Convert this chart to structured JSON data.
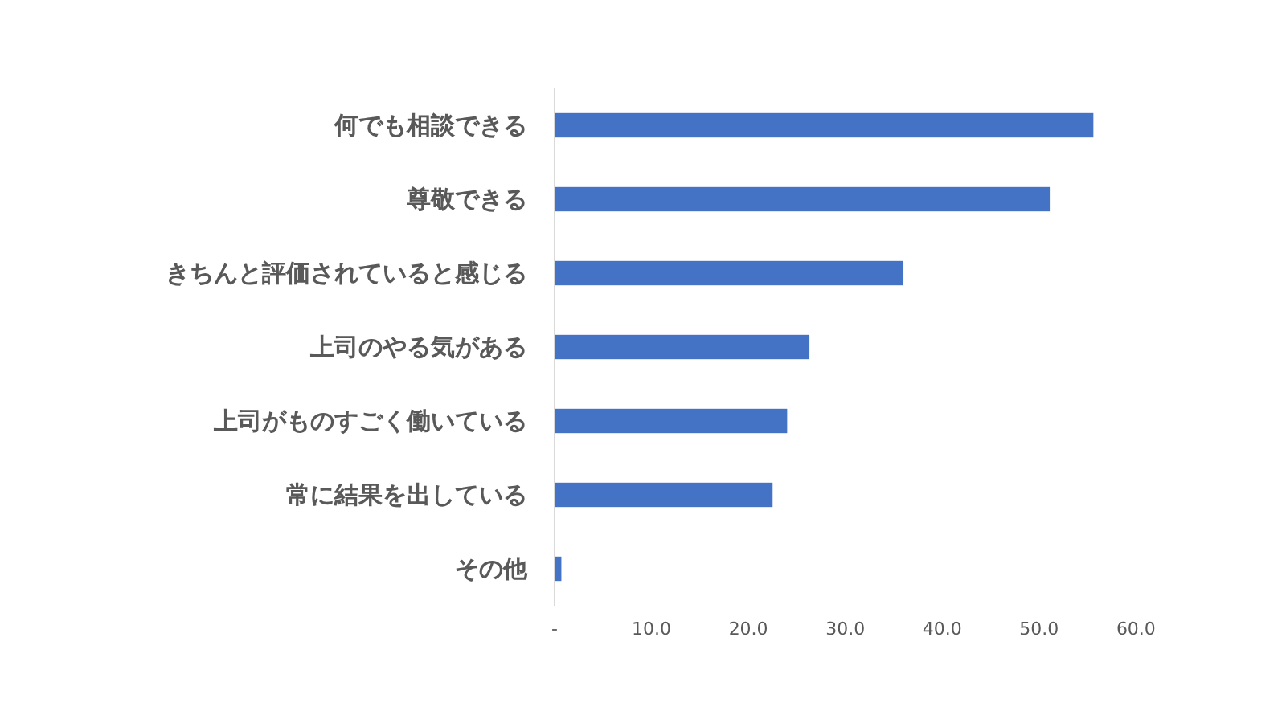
{
  "chart_data": {
    "type": "bar",
    "orientation": "horizontal",
    "categories": [
      "何でも相談できる",
      "尊敬できる",
      "きちんと評価されていると感じる",
      "上司のやる気がある",
      "上司がものすごく働いている",
      "常に結果を出している",
      "その他"
    ],
    "values": [
      55.6,
      51.1,
      36.0,
      26.3,
      24.0,
      22.5,
      0.7
    ],
    "color": "#4472c4",
    "xlim": [
      0,
      60
    ],
    "xticks": [
      {
        "value": 0,
        "label": "-"
      },
      {
        "value": 10,
        "label": "10.0"
      },
      {
        "value": 20,
        "label": "20.0"
      },
      {
        "value": 30,
        "label": "30.0"
      },
      {
        "value": 40,
        "label": "40.0"
      },
      {
        "value": 50,
        "label": "50.0"
      },
      {
        "value": 60,
        "label": "60.0"
      }
    ]
  }
}
